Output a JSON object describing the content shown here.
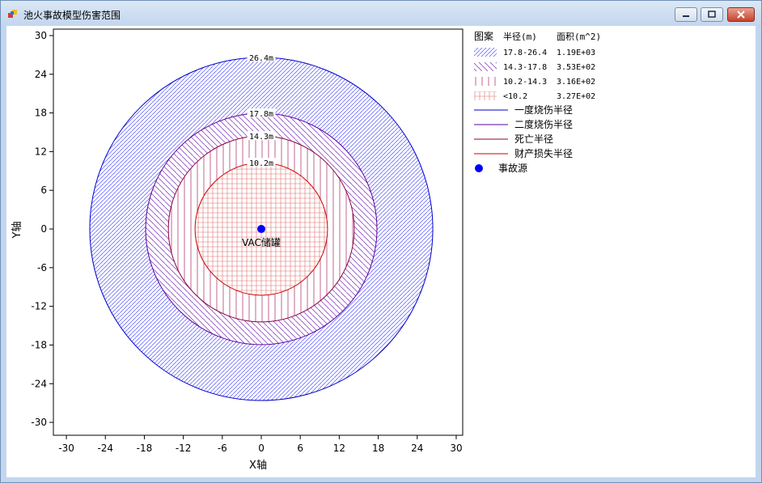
{
  "window": {
    "title": "池火事故模型伤害范围"
  },
  "chart_data": {
    "type": "scatter",
    "xlabel": "X轴",
    "ylabel": "Y轴",
    "xlim": [
      -32,
      31
    ],
    "ylim": [
      -32,
      31
    ],
    "xticks": [
      -30,
      -24,
      -18,
      -12,
      -6,
      0,
      6,
      12,
      18,
      24,
      30
    ],
    "yticks": [
      30,
      24,
      18,
      12,
      6,
      0,
      -6,
      -12,
      -18,
      -24,
      -30
    ],
    "grid": false,
    "legend_position": "right",
    "source": {
      "x": 0,
      "y": 0,
      "label": "VAC储罐",
      "color": "#0000ff"
    },
    "circles": [
      {
        "name": "一度烧伤半径",
        "radius": 26.4,
        "label": "26.4m",
        "color": "#0000cc"
      },
      {
        "name": "二度烧伤半径",
        "radius": 17.8,
        "label": "17.8m",
        "color": "#5a00a0"
      },
      {
        "name": "死亡半径",
        "radius": 14.3,
        "label": "14.3m",
        "color": "#8b0040"
      },
      {
        "name": "财产损失半径",
        "radius": 10.2,
        "label": "10.2m",
        "color": "#cc0000"
      }
    ],
    "zones": [
      {
        "range": "17.8-26.4",
        "area": "1.19E+03",
        "pattern": "diag-dense",
        "color": "#6a6aff"
      },
      {
        "range": "14.3-17.8",
        "area": "3.53E+02",
        "pattern": "diag",
        "color": "#8a4ac0"
      },
      {
        "range": "10.2-14.3",
        "area": "3.16E+02",
        "pattern": "vertical",
        "color": "#b04070"
      },
      {
        "range": "<10.2",
        "area": "3.27E+02",
        "pattern": "grid",
        "color": "#e07070"
      }
    ],
    "legend": {
      "header_pattern": "图案",
      "header_radius": "半径(m)",
      "header_area": "面积(m^2)",
      "source_label": "事故源"
    }
  }
}
